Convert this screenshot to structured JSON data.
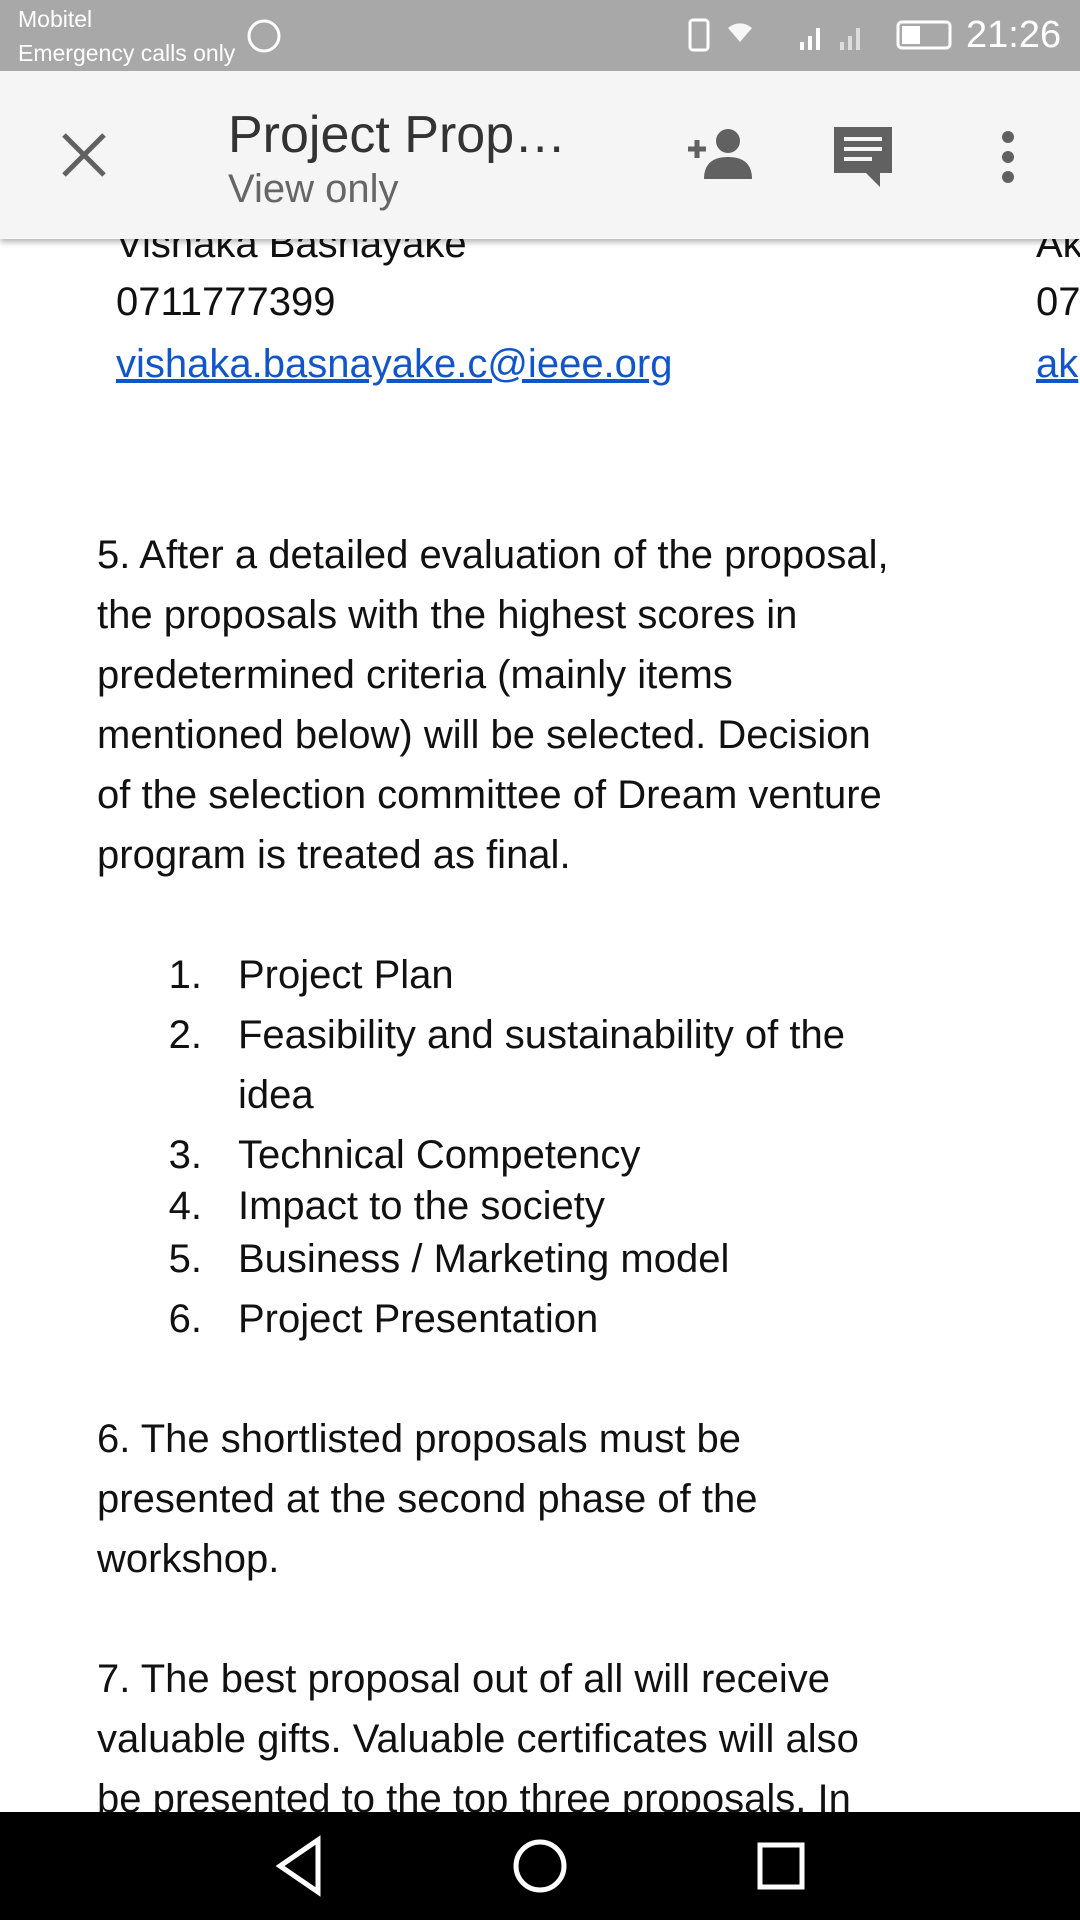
{
  "status_bar": {
    "carrier": "Mobitel",
    "note": "Emergency calls only",
    "time": "21:26"
  },
  "app_bar": {
    "title": "Project Prop…",
    "subtitle": "View only"
  },
  "document": {
    "contacts": [
      {
        "name": "Vishaka Basnayake",
        "phone": "0711777399",
        "email": "vishaka.basnayake.c@ieee.org"
      },
      {
        "name": "Ak",
        "phone": "07",
        "email": "ak"
      }
    ],
    "paragraph_5": [
      "5. After a detailed evaluation of the proposal,",
      "the proposals with the highest scores in",
      "predetermined criteria (mainly items",
      "mentioned below) will be selected.  Decision",
      "of the selection committee of Dream venture",
      "program is treated as final."
    ],
    "criteria": [
      {
        "number": "1.",
        "lines": [
          "Project Plan"
        ]
      },
      {
        "number": "2.",
        "lines": [
          "Feasibility and sustainability of the",
          "idea"
        ]
      },
      {
        "number": "3.",
        "lines": [
          "Technical Competency"
        ]
      },
      {
        "number": "4.",
        "lines": [
          "Impact to the society"
        ]
      },
      {
        "number": "5.",
        "lines": [
          "Business / Marketing model"
        ]
      },
      {
        "number": "6.",
        "lines": [
          "Project Presentation"
        ]
      }
    ],
    "paragraph_6": [
      "6. The shortlisted proposals must be",
      "presented at the second phase of the",
      "workshop."
    ],
    "paragraph_7": [
      "7. The best proposal out of all will receive",
      "valuable gifts. Valuable certificates will also",
      "be presented to the top three proposals. In"
    ]
  }
}
